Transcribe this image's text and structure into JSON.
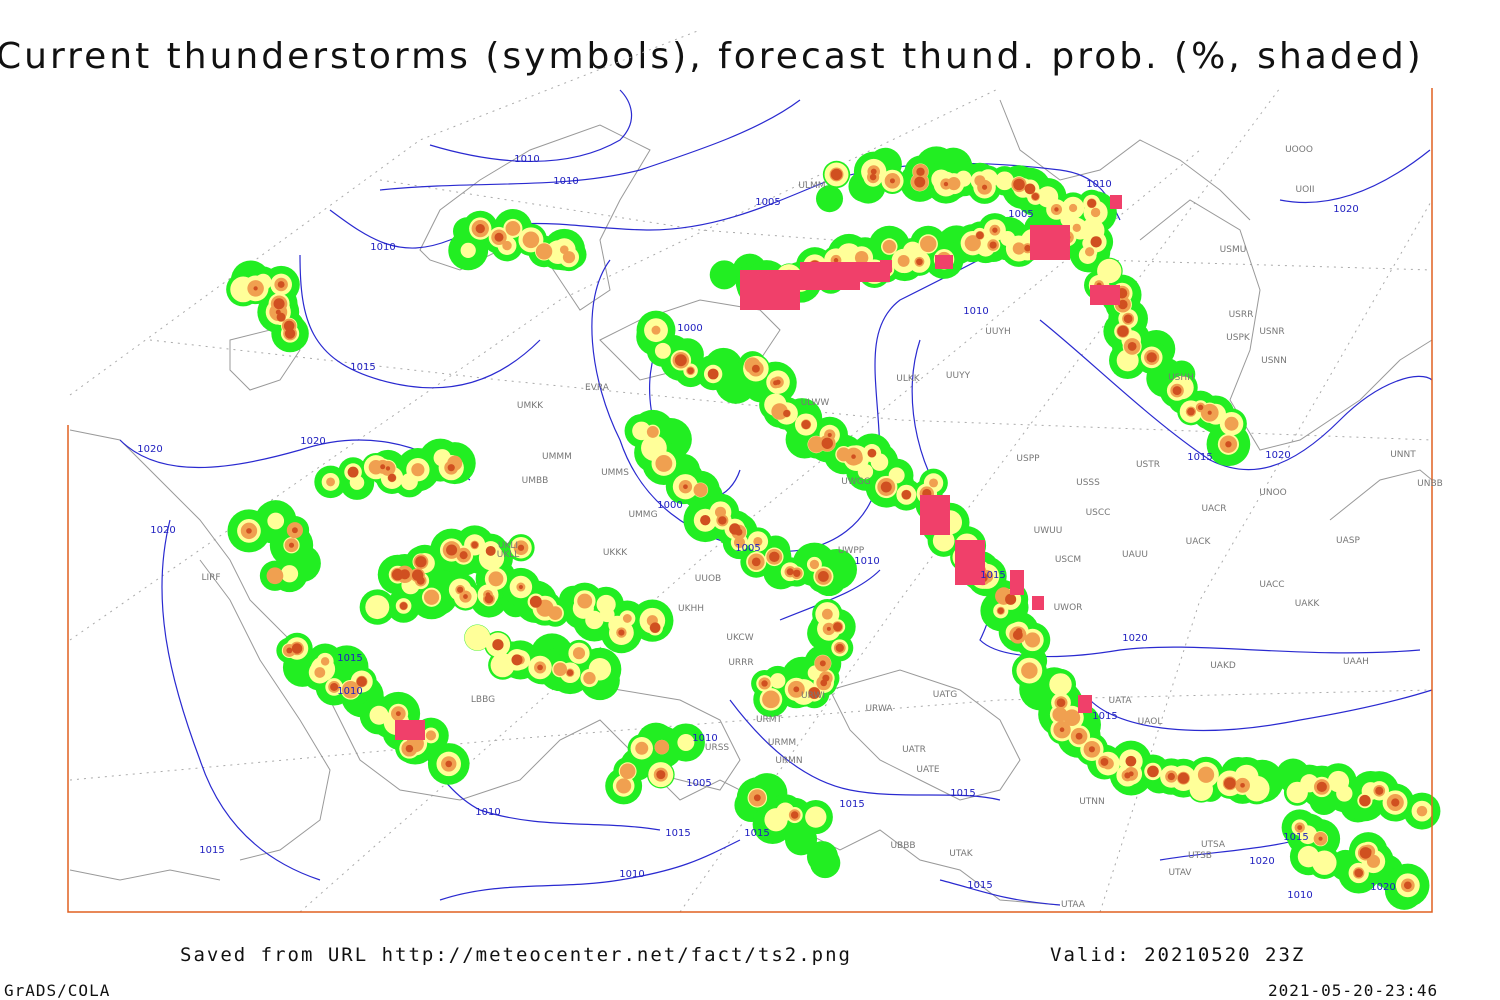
{
  "header": {
    "title": "Current thunderstorms (symbols), forecast thund. prob. (%, shaded)"
  },
  "isobar_labels": [
    "1010",
    "1010",
    "1005",
    "1010",
    "1005",
    "1020",
    "1010",
    "1015",
    "1000",
    "1010",
    "1020",
    "1020",
    "1000",
    "1005",
    "1010",
    "1015",
    "1015",
    "1020",
    "1020",
    "1020",
    "1015",
    "1010",
    "1015",
    "1010",
    "1005",
    "1015",
    "1015",
    "1010",
    "1015",
    "1015",
    "1015",
    "1015",
    "1020",
    "1010",
    "1015",
    "1010",
    "1020"
  ],
  "station_labels": [
    "ULMM",
    "UUYH",
    "ULKK",
    "UUYY",
    "ULWW",
    "EVRA",
    "UMKK",
    "UMMM",
    "UMMS",
    "UMBB",
    "UMMG",
    "UKLL",
    "UKLI",
    "UKKK",
    "UUOB",
    "UKHH",
    "UKCW",
    "URRR",
    "URWI",
    "URWA",
    "UATG",
    "URMT",
    "URMM",
    "URMN",
    "UATR",
    "UATE",
    "URSS",
    "UBBB",
    "UTAK",
    "UTNN",
    "UTAA",
    "UTSA",
    "UTSB",
    "UTAV",
    "UWGG",
    "UWPP",
    "UWUU",
    "UWOR",
    "USPP",
    "USSS",
    "USTR",
    "USCC",
    "USCM",
    "UATA",
    "UAOL",
    "UACK",
    "UAUU",
    "UACC",
    "UAKK",
    "UASP",
    "UAKD",
    "UAAH",
    "UNNT",
    "UNBB",
    "UNOO",
    "UACR",
    "USHH",
    "USRR",
    "USNR",
    "USPK",
    "USNN",
    "USMU",
    "UOII",
    "UOOO",
    "LIRF",
    "LBBG"
  ],
  "footer": {
    "source": "Saved from URL http://meteocenter.net/fact/ts2.png",
    "valid": "Valid: 20210520 23Z",
    "software": "GrADS/COLA",
    "timestamp": "2021-05-20-23:46"
  }
}
